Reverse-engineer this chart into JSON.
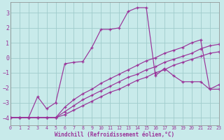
{
  "xlabel": "Windchill (Refroidissement éolien,°C)",
  "bg_color": "#c8eaea",
  "grid_color": "#a0cccc",
  "line_color": "#993399",
  "xlim": [
    0,
    23
  ],
  "ylim": [
    -4.5,
    3.7
  ],
  "yticks": [
    -4,
    -3,
    -2,
    -1,
    0,
    1,
    2,
    3
  ],
  "xticks": [
    0,
    1,
    2,
    3,
    4,
    5,
    6,
    7,
    8,
    9,
    10,
    11,
    12,
    13,
    14,
    15,
    16,
    17,
    18,
    19,
    20,
    21,
    22,
    23
  ],
  "line1_x": [
    0,
    1,
    2,
    3,
    4,
    5,
    6,
    7,
    8,
    9,
    10,
    11,
    12,
    13,
    14,
    15,
    16,
    17,
    18,
    19,
    20,
    21,
    22,
    23
  ],
  "line1_y": [
    -4.0,
    -4.0,
    -4.0,
    -4.0,
    -4.0,
    -4.0,
    -3.8,
    -3.5,
    -3.2,
    -2.9,
    -2.6,
    -2.3,
    -2.1,
    -1.8,
    -1.5,
    -1.3,
    -1.0,
    -0.8,
    -0.5,
    -0.3,
    -0.1,
    0.1,
    0.3,
    0.4
  ],
  "line2_x": [
    0,
    1,
    2,
    3,
    4,
    5,
    6,
    7,
    8,
    9,
    10,
    11,
    12,
    13,
    14,
    15,
    16,
    17,
    18,
    19,
    20,
    21,
    22,
    23
  ],
  "line2_y": [
    -4.0,
    -4.0,
    -4.0,
    -4.0,
    -4.0,
    -4.0,
    -3.6,
    -3.2,
    -2.8,
    -2.5,
    -2.2,
    -1.9,
    -1.6,
    -1.3,
    -1.1,
    -0.8,
    -0.6,
    -0.3,
    -0.1,
    0.1,
    0.3,
    0.6,
    0.8,
    0.9
  ],
  "line3_x": [
    0,
    1,
    2,
    3,
    4,
    5,
    6,
    7,
    8,
    9,
    10,
    11,
    12,
    13,
    14,
    15,
    16,
    17,
    18,
    19,
    20,
    21,
    22,
    23
  ],
  "line3_y": [
    -4.0,
    -4.0,
    -4.0,
    -4.0,
    -4.0,
    -4.0,
    -3.3,
    -2.8,
    -2.4,
    -2.1,
    -1.7,
    -1.4,
    -1.1,
    -0.8,
    -0.5,
    -0.2,
    0.0,
    0.3,
    0.5,
    0.7,
    1.0,
    1.2,
    -2.1,
    -1.8
  ],
  "line4_x": [
    0,
    1,
    2,
    3,
    4,
    5,
    6,
    7,
    8,
    9,
    10,
    11,
    12,
    13,
    14,
    15,
    16,
    17,
    18,
    19,
    20,
    21,
    22,
    23
  ],
  "line4_y": [
    -4.0,
    -4.0,
    -4.0,
    -2.6,
    -3.4,
    -3.0,
    -0.4,
    -0.3,
    -0.25,
    0.7,
    1.9,
    1.9,
    2.0,
    3.1,
    3.35,
    3.35,
    -1.2,
    -0.7,
    -1.2,
    -1.6,
    -1.6,
    -1.6,
    -2.1,
    -2.1
  ]
}
